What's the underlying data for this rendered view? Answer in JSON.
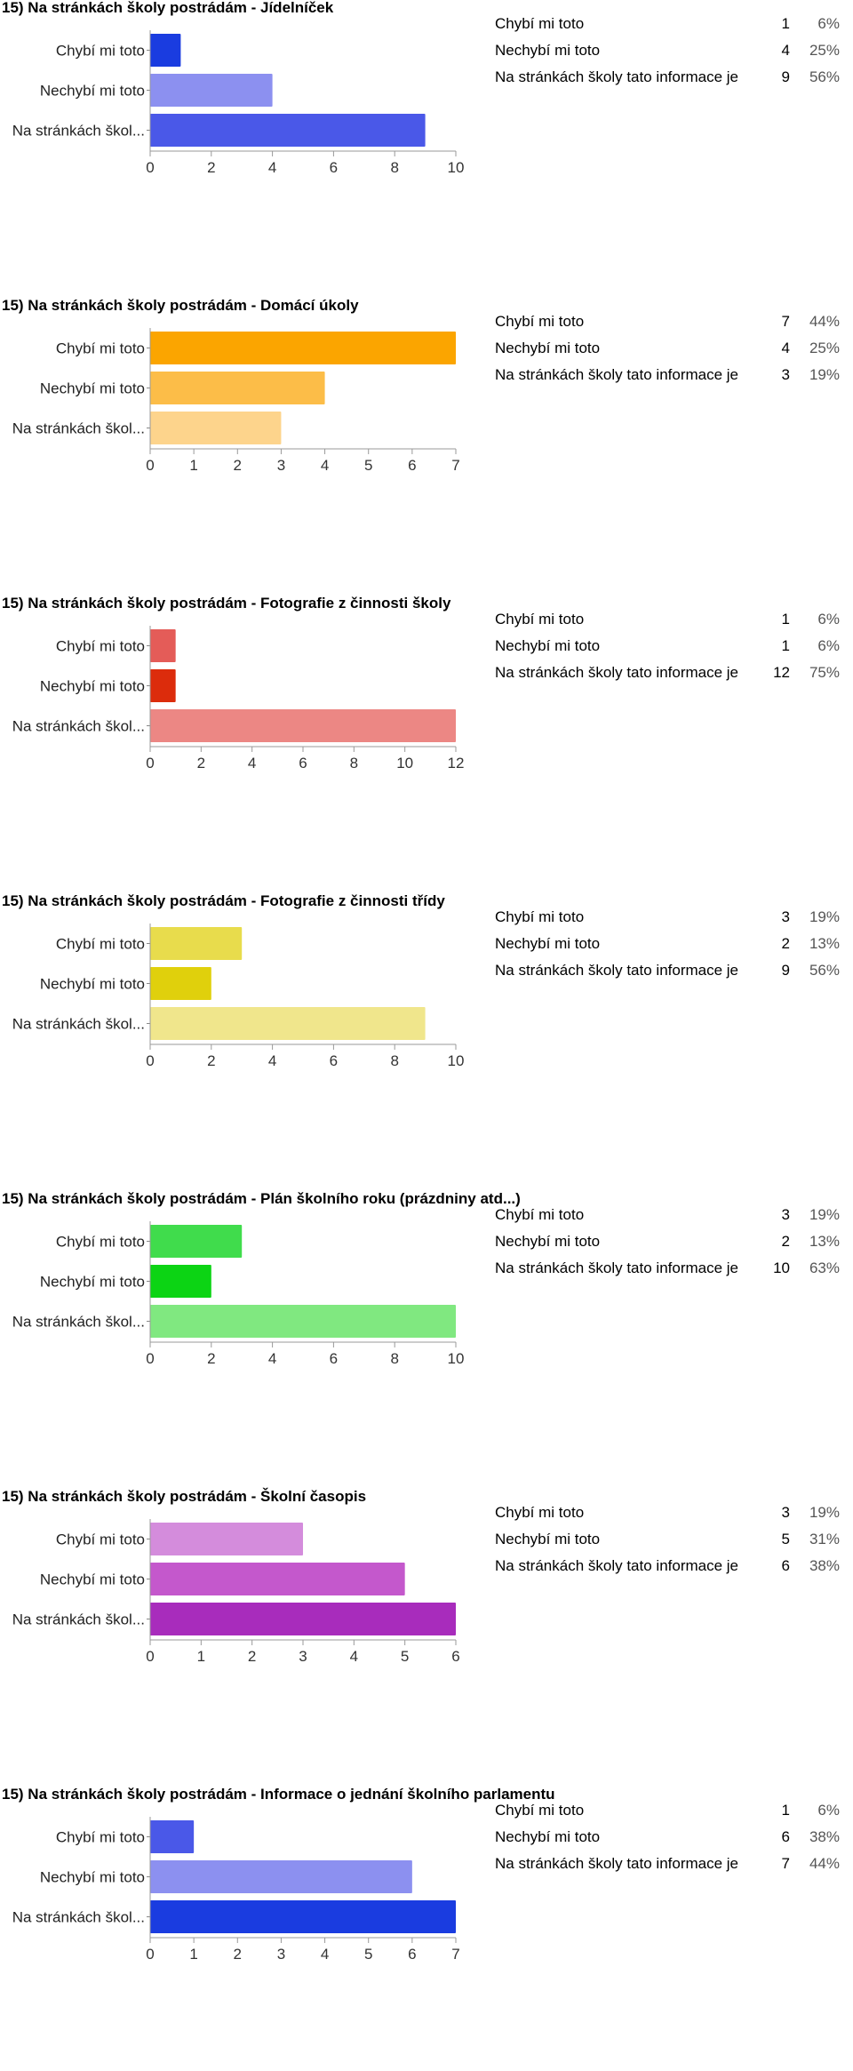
{
  "chart_data": [
    {
      "type": "bar",
      "title": "15) Na stránkách školy postrádám - Jídelníček",
      "categories": [
        "Chybí mi toto",
        "Nechybí mi toto",
        "Na stránkách škol..."
      ],
      "values": [
        1,
        4,
        9
      ],
      "colors": [
        "#1a3ce0",
        "#8c90f0",
        "#4a58e8"
      ],
      "xlim": [
        0,
        10
      ],
      "xticks": [
        0,
        2,
        4,
        6,
        8,
        10
      ],
      "summary": [
        {
          "label": "Chybí mi toto",
          "count": "1",
          "pct": "6%"
        },
        {
          "label": "Nechybí mi toto",
          "count": "4",
          "pct": "25%"
        },
        {
          "label": "Na stránkách školy tato informace je",
          "count": "9",
          "pct": "56%"
        }
      ]
    },
    {
      "type": "bar",
      "title": "15) Na stránkách školy postrádám - Domácí úkoly",
      "categories": [
        "Chybí mi toto",
        "Nechybí mi toto",
        "Na stránkách škol..."
      ],
      "values": [
        7,
        4,
        3
      ],
      "colors": [
        "#fba500",
        "#fcbd48",
        "#fdd48c"
      ],
      "xlim": [
        0,
        7
      ],
      "xticks": [
        0,
        1,
        2,
        3,
        4,
        5,
        6,
        7
      ],
      "summary": [
        {
          "label": "Chybí mi toto",
          "count": "7",
          "pct": "44%"
        },
        {
          "label": "Nechybí mi toto",
          "count": "4",
          "pct": "25%"
        },
        {
          "label": "Na stránkách školy tato informace je",
          "count": "3",
          "pct": "19%"
        }
      ]
    },
    {
      "type": "bar",
      "title": "15) Na stránkách školy postrádám - Fotografie z činnosti školy",
      "categories": [
        "Chybí mi toto",
        "Nechybí mi toto",
        "Na stránkách škol..."
      ],
      "values": [
        1,
        1,
        12
      ],
      "colors": [
        "#e45c58",
        "#dc2c0c",
        "#ec8784"
      ],
      "xlim": [
        0,
        12
      ],
      "xticks": [
        0,
        2,
        4,
        6,
        8,
        10,
        12
      ],
      "summary": [
        {
          "label": "Chybí mi toto",
          "count": "1",
          "pct": "6%"
        },
        {
          "label": "Nechybí mi toto",
          "count": "1",
          "pct": "6%"
        },
        {
          "label": "Na stránkách školy tato informace je",
          "count": "12",
          "pct": "75%"
        }
      ]
    },
    {
      "type": "bar",
      "title": "15) Na stránkách školy postrádám - Fotografie z činnosti třídy",
      "categories": [
        "Chybí mi toto",
        "Nechybí mi toto",
        "Na stránkách škol..."
      ],
      "values": [
        3,
        2,
        9
      ],
      "colors": [
        "#e8dc4c",
        "#e0d00c",
        "#f0e68c"
      ],
      "xlim": [
        0,
        10
      ],
      "xticks": [
        0,
        2,
        4,
        6,
        8,
        10
      ],
      "summary": [
        {
          "label": "Chybí mi toto",
          "count": "3",
          "pct": "19%"
        },
        {
          "label": "Nechybí mi toto",
          "count": "2",
          "pct": "13%"
        },
        {
          "label": "Na stránkách školy tato informace je",
          "count": "9",
          "pct": "56%"
        }
      ]
    },
    {
      "type": "bar",
      "title": "15) Na stránkách školy postrádám - Plán školního roku (prázdniny atd...)",
      "categories": [
        "Chybí mi toto",
        "Nechybí mi toto",
        "Na stránkách škol..."
      ],
      "values": [
        3,
        2,
        10
      ],
      "colors": [
        "#40dc4c",
        "#0cd414",
        "#80e880"
      ],
      "xlim": [
        0,
        10
      ],
      "xticks": [
        0,
        2,
        4,
        6,
        8,
        10
      ],
      "summary": [
        {
          "label": "Chybí mi toto",
          "count": "3",
          "pct": "19%"
        },
        {
          "label": "Nechybí mi toto",
          "count": "2",
          "pct": "13%"
        },
        {
          "label": "Na stránkách školy tato informace je",
          "count": "10",
          "pct": "63%"
        }
      ]
    },
    {
      "type": "bar",
      "title": "15) Na stránkách školy postrádám - Školní časopis",
      "categories": [
        "Chybí mi toto",
        "Nechybí mi toto",
        "Na stránkách škol..."
      ],
      "values": [
        3,
        5,
        6
      ],
      "colors": [
        "#d48cdc",
        "#c458cc",
        "#a82cbc"
      ],
      "xlim": [
        0,
        6
      ],
      "xticks": [
        0,
        1,
        2,
        3,
        4,
        5,
        6
      ],
      "summary": [
        {
          "label": "Chybí mi toto",
          "count": "3",
          "pct": "19%"
        },
        {
          "label": "Nechybí mi toto",
          "count": "5",
          "pct": "31%"
        },
        {
          "label": "Na stránkách školy tato informace je",
          "count": "6",
          "pct": "38%"
        }
      ]
    },
    {
      "type": "bar",
      "title": "15) Na stránkách školy postrádám - Informace o jednání školního parlamentu",
      "categories": [
        "Chybí mi toto",
        "Nechybí mi toto",
        "Na stránkách škol..."
      ],
      "values": [
        1,
        6,
        7
      ],
      "colors": [
        "#4a58e8",
        "#8c90f0",
        "#1a3ce0"
      ],
      "xlim": [
        0,
        7
      ],
      "xticks": [
        0,
        1,
        2,
        3,
        4,
        5,
        6,
        7
      ],
      "summary": [
        {
          "label": "Chybí mi toto",
          "count": "1",
          "pct": "6%"
        },
        {
          "label": "Nechybí mi toto",
          "count": "6",
          "pct": "38%"
        },
        {
          "label": "Na stránkách školy tato informace je",
          "count": "7",
          "pct": "44%"
        }
      ]
    }
  ]
}
